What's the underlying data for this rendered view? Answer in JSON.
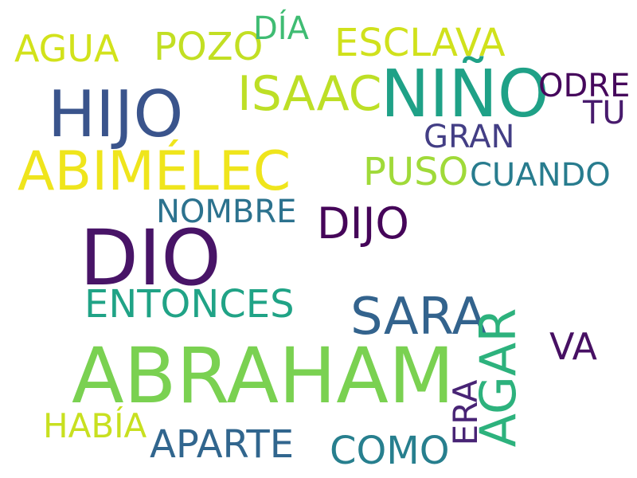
{
  "words": {
    "agua": {
      "text": "AGUA",
      "color": "#d2e21b"
    },
    "pozo": {
      "text": "POZO",
      "color": "#c2df23"
    },
    "dia": {
      "text": "DÍA",
      "color": "#3fbc73"
    },
    "esclava": {
      "text": "ESCLAVA",
      "color": "#d0e11c"
    },
    "isaac": {
      "text": "ISAAC",
      "color": "#bddf26"
    },
    "nino": {
      "text": "NIÑO",
      "color": "#1fa187"
    },
    "odre": {
      "text": "ODRE",
      "color": "#46085c"
    },
    "tu": {
      "text": "TU",
      "color": "#481b6d"
    },
    "hijo": {
      "text": "HIJO",
      "color": "#3a548c"
    },
    "gran": {
      "text": "GRAN",
      "color": "#433e85"
    },
    "abimelec": {
      "text": "ABIMÉLEC",
      "color": "#efe51c"
    },
    "puso": {
      "text": "PUSO",
      "color": "#a0da39"
    },
    "cuando": {
      "text": "CUANDO",
      "color": "#287c8e"
    },
    "nombre": {
      "text": "NOMBRE",
      "color": "#2c728e"
    },
    "dijo": {
      "text": "DIJO",
      "color": "#450559"
    },
    "dio": {
      "text": "DIO",
      "color": "#481467"
    },
    "entonces": {
      "text": "ENTONCES",
      "color": "#20a386"
    },
    "sara": {
      "text": "SARA",
      "color": "#33638d"
    },
    "va": {
      "text": "VA",
      "color": "#471063"
    },
    "abraham": {
      "text": "ABRAHAM",
      "color": "#7ad151"
    },
    "habia": {
      "text": "HABÍA",
      "color": "#c8e020"
    },
    "aparte": {
      "text": "APARTE",
      "color": "#31668e"
    },
    "como": {
      "text": "COMO",
      "color": "#277f8e"
    },
    "era": {
      "text": "ERA",
      "color": "#482475"
    },
    "agar": {
      "text": "AGAR",
      "color": "#2db27d"
    }
  },
  "background_color": "#ffffff"
}
